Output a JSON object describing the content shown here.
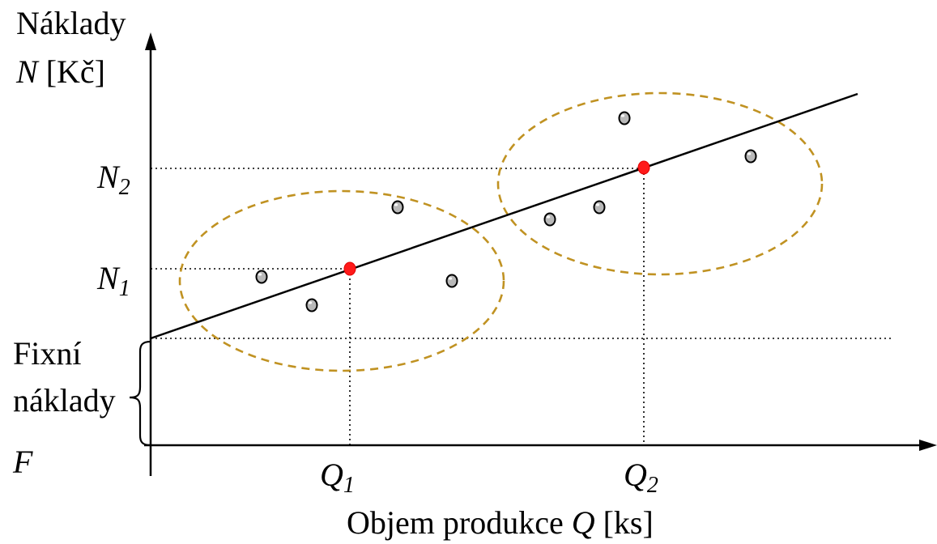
{
  "axes": {
    "y_label_line1": "Náklady",
    "y_label_var": "N",
    "y_label_unit": " [Kč]",
    "x_label_text": "Objem produkce ",
    "x_label_var": "Q",
    "x_label_unit": " [ks]"
  },
  "ticks": {
    "n2": {
      "main": "N",
      "sub": "2"
    },
    "n1": {
      "main": "N",
      "sub": "1"
    },
    "q1": {
      "main": "Q",
      "sub": "1"
    },
    "q2": {
      "main": "Q",
      "sub": "2"
    }
  },
  "fixed_costs": {
    "line1": "Fixní",
    "line2": "náklady",
    "symbol": "F"
  },
  "colors": {
    "cluster_outline": "#c09222",
    "highlight_point": "#ff1a1a",
    "data_point": "#b9b9b9"
  }
}
